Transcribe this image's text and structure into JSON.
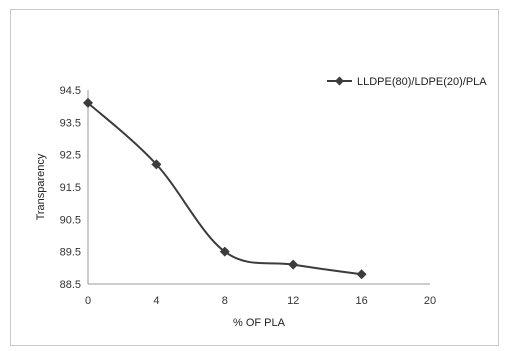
{
  "chart_data": {
    "type": "line",
    "title": "",
    "xlabel": "% OF PLA",
    "ylabel": "Transparency",
    "xlim": [
      0,
      20
    ],
    "ylim": [
      88.5,
      94.5
    ],
    "x_ticks": [
      "0",
      "4",
      "8",
      "12",
      "16",
      "20"
    ],
    "y_ticks": [
      "94.5",
      "93.5",
      "92.5",
      "91.5",
      "90.5",
      "89.5",
      "88.5"
    ],
    "series": [
      {
        "name": "LLDPE(80)/LDPE(20)/PLA",
        "color": "#3c3c3c",
        "marker": "diamond",
        "smooth": true,
        "x": [
          0,
          4,
          8,
          12,
          16
        ],
        "y": [
          94.1,
          92.2,
          89.5,
          89.1,
          88.8
        ]
      }
    ],
    "legend": "top-right",
    "grid": false
  }
}
